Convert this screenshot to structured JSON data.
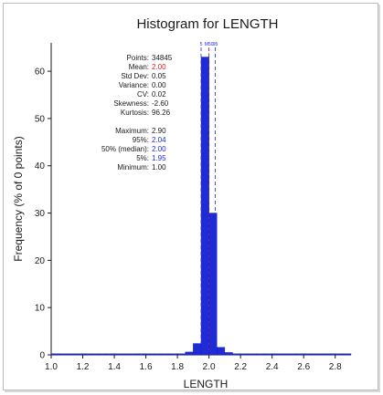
{
  "chart_data": {
    "type": "bar",
    "title": "Histogram for LENGTH",
    "xlabel": "LENGTH",
    "ylabel": "Frequency (% of 0 points)",
    "xlim": [
      1.0,
      2.9
    ],
    "ylim": [
      0,
      66
    ],
    "bin_width": 0.05,
    "x_ticks": [
      "1.0",
      "1.2",
      "1.4",
      "1.6",
      "1.8",
      "2.0",
      "2.2",
      "2.4",
      "2.6",
      "2.8"
    ],
    "x_tick_values": [
      1.0,
      1.2,
      1.4,
      1.6,
      1.8,
      2.0,
      2.2,
      2.4,
      2.6,
      2.8
    ],
    "y_ticks": [
      "0",
      "10",
      "20",
      "30",
      "40",
      "50",
      "60"
    ],
    "y_tick_values": [
      0,
      10,
      20,
      30,
      40,
      50,
      60
    ],
    "bins": [
      {
        "x": 1.0,
        "value": 0.05
      },
      {
        "x": 1.05,
        "value": 0.05
      },
      {
        "x": 1.1,
        "value": 0.05
      },
      {
        "x": 1.15,
        "value": 0.05
      },
      {
        "x": 1.2,
        "value": 0.05
      },
      {
        "x": 1.25,
        "value": 0.05
      },
      {
        "x": 1.3,
        "value": 0.05
      },
      {
        "x": 1.35,
        "value": 0.05
      },
      {
        "x": 1.4,
        "value": 0.05
      },
      {
        "x": 1.45,
        "value": 0.05
      },
      {
        "x": 1.5,
        "value": 0.05
      },
      {
        "x": 1.55,
        "value": 0.05
      },
      {
        "x": 1.6,
        "value": 0.05
      },
      {
        "x": 1.65,
        "value": 0.05
      },
      {
        "x": 1.7,
        "value": 0.05
      },
      {
        "x": 1.75,
        "value": 0.1
      },
      {
        "x": 1.8,
        "value": 0.2
      },
      {
        "x": 1.85,
        "value": 0.6
      },
      {
        "x": 1.9,
        "value": 2.4
      },
      {
        "x": 1.95,
        "value": 63.0
      },
      {
        "x": 2.0,
        "value": 30.0
      },
      {
        "x": 2.05,
        "value": 1.6
      },
      {
        "x": 2.1,
        "value": 0.5
      },
      {
        "x": 2.15,
        "value": 0.2
      },
      {
        "x": 2.2,
        "value": 0.1
      },
      {
        "x": 2.25,
        "value": 0.05
      },
      {
        "x": 2.3,
        "value": 0.05
      },
      {
        "x": 2.35,
        "value": 0.05
      },
      {
        "x": 2.4,
        "value": 0.05
      },
      {
        "x": 2.45,
        "value": 0.05
      },
      {
        "x": 2.5,
        "value": 0.05
      },
      {
        "x": 2.55,
        "value": 0.05
      },
      {
        "x": 2.6,
        "value": 0.05
      },
      {
        "x": 2.65,
        "value": 0.05
      },
      {
        "x": 2.7,
        "value": 0.05
      },
      {
        "x": 2.75,
        "value": 0.05
      },
      {
        "x": 2.8,
        "value": 0.05
      },
      {
        "x": 2.85,
        "value": 0.05
      }
    ],
    "bar_color": "#1f2bd6",
    "bar_edge_color": "#0f17a8",
    "statistics": [
      {
        "label": "Points:",
        "value": "34845",
        "color": "#1a1a1a"
      },
      {
        "label": "Mean:",
        "value": "2.00",
        "color": "#e02020"
      },
      {
        "label": "Std Dev:",
        "value": "0.05",
        "color": "#1a1a1a"
      },
      {
        "label": "Variance:",
        "value": "0.00",
        "color": "#1a1a1a"
      },
      {
        "label": "CV:",
        "value": "0.02",
        "color": "#1a1a1a"
      },
      {
        "label": "Skewness:",
        "value": "-2.60",
        "color": "#1a1a1a"
      },
      {
        "label": "Kurtosis:",
        "value": "96.26",
        "color": "#1a1a1a"
      },
      {
        "label": "",
        "value": "",
        "color": "#1a1a1a"
      },
      {
        "label": "Maximum:",
        "value": "2.90",
        "color": "#1a1a1a"
      },
      {
        "label": "95%:",
        "value": "2.04",
        "color": "#1f2bd6"
      },
      {
        "label": "50% (median):",
        "value": "2.00",
        "color": "#1f2bd6"
      },
      {
        "label": "5%:",
        "value": "1.95",
        "color": "#1f2bd6"
      },
      {
        "label": "Minimum:",
        "value": "1.00",
        "color": "#1a1a1a"
      }
    ],
    "percentile_markers": [
      {
        "label": "5",
        "x": 1.95
      },
      {
        "label": "M50",
        "x": 2.0
      },
      {
        "label": "95",
        "x": 2.04
      }
    ],
    "marker_color": "#1f2bd6",
    "mean_marker": {
      "x": 2.0,
      "color": "#e02020"
    },
    "grid": false,
    "legend": "none"
  }
}
